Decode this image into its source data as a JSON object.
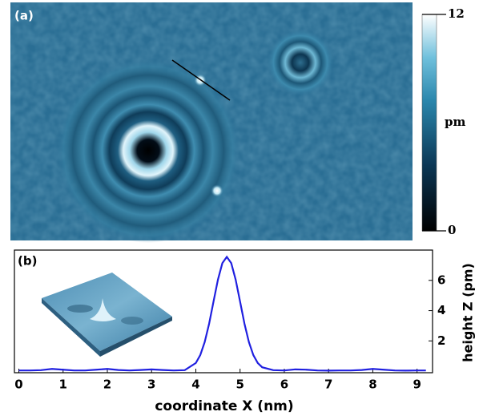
{
  "chart_data": [
    {
      "type": "image",
      "label": "(a)",
      "colorbar": {
        "label": "pm",
        "lim": [
          0,
          12
        ],
        "ticks": [
          0,
          12
        ]
      }
    },
    {
      "type": "line",
      "label": "(b)",
      "xlabel": "coordinate X (nm)",
      "ylabel": "height Z (pm)",
      "x": [
        0,
        0.25,
        0.5,
        0.75,
        1,
        1.25,
        1.5,
        1.75,
        2,
        2.25,
        2.5,
        2.75,
        3,
        3.25,
        3.5,
        3.75,
        4,
        4.1,
        4.2,
        4.3,
        4.4,
        4.5,
        4.6,
        4.7,
        4.8,
        4.9,
        5,
        5.1,
        5.2,
        5.3,
        5.4,
        5.5,
        5.75,
        6,
        6.25,
        6.5,
        6.75,
        7,
        7.25,
        7.5,
        7.75,
        8,
        8.25,
        8.5,
        8.75,
        9,
        9.2
      ],
      "series": [
        {
          "color": "#2020e0",
          "values": [
            0.05,
            0.05,
            0.07,
            0.15,
            0.1,
            0.05,
            0.05,
            0.1,
            0.15,
            0.08,
            0.05,
            0.08,
            0.12,
            0.08,
            0.05,
            0.07,
            0.54,
            1.06,
            1.92,
            3.13,
            4.6,
            6.05,
            7.14,
            7.55,
            7.14,
            6.05,
            4.6,
            3.13,
            1.92,
            1.06,
            0.54,
            0.26,
            0.07,
            0.05,
            0.12,
            0.1,
            0.05,
            0.04,
            0.05,
            0.05,
            0.08,
            0.15,
            0.1,
            0.05,
            0.04,
            0.05,
            0.05
          ]
        }
      ],
      "xlim": [
        -0.1,
        9.35
      ],
      "ylim": [
        -0.1,
        8
      ],
      "xticks": [
        0,
        1,
        2,
        3,
        4,
        5,
        6,
        7,
        8,
        9
      ],
      "yticks": [
        2,
        4,
        6
      ]
    }
  ]
}
